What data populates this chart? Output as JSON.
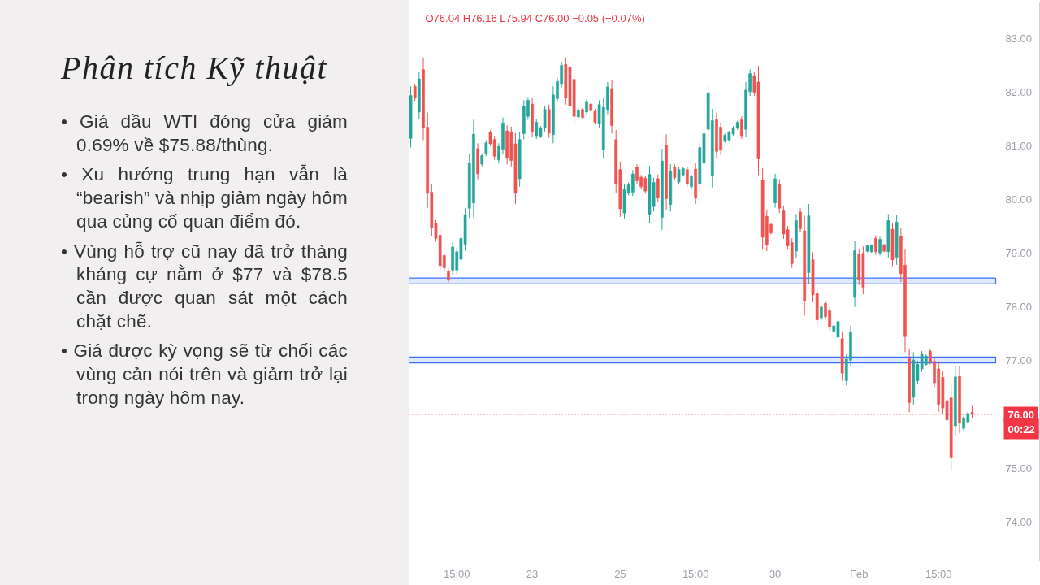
{
  "chart_data": {
    "type": "candlestick",
    "title": "Phân tích Kỹ thuật",
    "annotations": [
      "O76.04 H76.16 L75.94 C76.00 −0.05 (−0.07%)",
      "00:22",
      "• Giá dầu WTI đóng cửa giảm 0.69% về $75.88/thùng.",
      "• Xu hướng trung hạn vẫn là “bearish” và nhịp giảm ngày hôm qua củng cố quan điểm đó.",
      "• Vùng hỗ trợ cũ nay đã trở thàng kháng cự nằm ở $77 và $78.5 cần được quan sát một cách chặt chẽ.",
      "• Giá được kỳ vọng sẽ từ chối các vùng cản nói trên và giảm trở lại trong ngày hôm nay."
    ],
    "categories": [
      null,
      null,
      null,
      null,
      null,
      null,
      null,
      null,
      null,
      null,
      null,
      "15:00",
      null,
      null,
      null,
      null,
      null,
      null,
      null,
      null,
      null,
      null,
      null,
      null,
      null,
      null,
      null,
      null,
      null,
      "23",
      null,
      null,
      null,
      null,
      null,
      null,
      null,
      null,
      null,
      null,
      null,
      null,
      null,
      null,
      null,
      null,
      null,
      null,
      null,
      null,
      "25",
      null,
      null,
      null,
      null,
      null,
      null,
      null,
      null,
      null,
      null,
      null,
      null,
      null,
      null,
      null,
      null,
      null,
      "15:00",
      null,
      null,
      null,
      null,
      null,
      null,
      null,
      null,
      null,
      null,
      null,
      null,
      null,
      null,
      null,
      null,
      null,
      null,
      "30",
      null,
      null,
      null,
      null,
      null,
      null,
      null,
      null,
      null,
      null,
      null,
      null,
      null,
      null,
      null,
      null,
      null,
      null,
      null,
      "Feb",
      null,
      null,
      null,
      null,
      null,
      null,
      null,
      null,
      null,
      null,
      null,
      null,
      null,
      null,
      null,
      null,
      null,
      null,
      "15:00",
      null,
      null,
      null,
      null,
      null,
      null,
      null,
      null
    ],
    "ohlc": [
      [
        81.14,
        82.11,
        80.97,
        81.94
      ],
      [
        82.11,
        82.16,
        81.84,
        81.89
      ],
      [
        81.63,
        82.38,
        81.5,
        82.25
      ],
      [
        82.42,
        82.65,
        81.11,
        81.34
      ],
      [
        81.35,
        81.62,
        79.85,
        80.12
      ],
      [
        80.14,
        80.29,
        79.32,
        79.47
      ],
      [
        79.56,
        79.62,
        79.22,
        79.28
      ],
      [
        79.34,
        79.46,
        78.65,
        78.77
      ],
      [
        78.96,
        79.01,
        78.68,
        78.73
      ],
      [
        78.67,
        78.71,
        78.46,
        78.5
      ],
      [
        78.69,
        79.21,
        78.6,
        79.12
      ],
      [
        78.69,
        79.11,
        78.61,
        79.03
      ],
      [
        78.89,
        79.37,
        78.8,
        79.28
      ],
      [
        79.17,
        79.84,
        79.05,
        79.72
      ],
      [
        79.84,
        80.86,
        79.66,
        80.68
      ],
      [
        79.94,
        81.49,
        79.67,
        81.22
      ],
      [
        80.95,
        81.05,
        80.38,
        80.48
      ],
      [
        80.66,
        80.86,
        80.62,
        80.82
      ],
      [
        80.86,
        81.11,
        80.81,
        81.06
      ],
      [
        81.25,
        81.29,
        81.0,
        81.04
      ],
      [
        81.12,
        81.19,
        80.74,
        80.81
      ],
      [
        80.74,
        81.05,
        80.68,
        80.99
      ],
      [
        80.94,
        81.53,
        80.84,
        81.43
      ],
      [
        81.28,
        81.39,
        80.66,
        80.77
      ],
      [
        81.25,
        81.36,
        80.62,
        80.73
      ],
      [
        81.04,
        81.24,
        79.92,
        80.12
      ],
      [
        80.39,
        81.27,
        80.24,
        81.12
      ],
      [
        81.23,
        81.85,
        81.12,
        81.74
      ],
      [
        81.55,
        81.91,
        81.49,
        81.85
      ],
      [
        81.78,
        81.89,
        81.16,
        81.27
      ],
      [
        81.19,
        81.5,
        81.13,
        81.44
      ],
      [
        81.18,
        81.37,
        81.15,
        81.34
      ],
      [
        81.34,
        81.75,
        81.27,
        81.68
      ],
      [
        81.68,
        81.77,
        81.15,
        81.24
      ],
      [
        81.21,
        82.11,
        81.05,
        81.95
      ],
      [
        81.88,
        82.27,
        81.81,
        82.2
      ],
      [
        82.16,
        82.57,
        82.09,
        82.5
      ],
      [
        82.52,
        82.65,
        81.77,
        81.9
      ],
      [
        82.47,
        82.63,
        81.59,
        81.75
      ],
      [
        82.24,
        82.39,
        81.4,
        81.55
      ],
      [
        81.54,
        81.7,
        81.51,
        81.67
      ],
      [
        81.68,
        81.71,
        81.5,
        81.53
      ],
      [
        81.63,
        81.87,
        81.59,
        81.83
      ],
      [
        81.78,
        81.81,
        81.64,
        81.67
      ],
      [
        81.65,
        81.69,
        81.4,
        81.44
      ],
      [
        81.41,
        81.85,
        81.33,
        81.77
      ],
      [
        80.93,
        81.89,
        80.76,
        81.72
      ],
      [
        81.68,
        82.19,
        81.59,
        82.1
      ],
      [
        82.07,
        82.22,
        81.23,
        81.38
      ],
      [
        81.12,
        81.3,
        80.12,
        80.3
      ],
      [
        80.56,
        80.71,
        79.68,
        79.83
      ],
      [
        79.75,
        80.29,
        79.65,
        80.19
      ],
      [
        80.12,
        80.32,
        80.08,
        80.28
      ],
      [
        80.14,
        80.55,
        80.07,
        80.48
      ],
      [
        80.6,
        80.66,
        80.29,
        80.35
      ],
      [
        80.42,
        80.46,
        80.2,
        80.24
      ],
      [
        80.4,
        80.45,
        80.11,
        80.16
      ],
      [
        79.73,
        80.63,
        79.57,
        80.47
      ],
      [
        79.87,
        80.41,
        79.78,
        80.32
      ],
      [
        80.39,
        80.47,
        79.95,
        80.03
      ],
      [
        79.67,
        80.95,
        79.44,
        80.72
      ],
      [
        81.01,
        81.22,
        79.81,
        80.02
      ],
      [
        79.91,
        80.66,
        79.78,
        80.53
      ],
      [
        80.61,
        80.66,
        80.36,
        80.41
      ],
      [
        80.33,
        80.61,
        80.28,
        80.56
      ],
      [
        80.46,
        80.61,
        80.43,
        80.58
      ],
      [
        80.56,
        80.62,
        80.24,
        80.3
      ],
      [
        80.24,
        80.47,
        80.2,
        80.43
      ],
      [
        80.57,
        80.68,
        79.92,
        80.03
      ],
      [
        80.29,
        81.11,
        80.15,
        80.97
      ],
      [
        80.68,
        81.35,
        80.56,
        81.23
      ],
      [
        81.31,
        82.13,
        81.17,
        81.99
      ],
      [
        80.45,
        81.69,
        80.23,
        81.47
      ],
      [
        81.49,
        81.62,
        80.77,
        80.9
      ],
      [
        81.35,
        81.44,
        80.83,
        80.92
      ],
      [
        81.09,
        81.23,
        81.06,
        81.2
      ],
      [
        81.11,
        81.28,
        81.08,
        81.25
      ],
      [
        81.22,
        81.37,
        81.19,
        81.34
      ],
      [
        81.33,
        81.47,
        81.3,
        81.44
      ],
      [
        81.49,
        81.55,
        81.13,
        81.19
      ],
      [
        81.31,
        82.19,
        81.16,
        82.04
      ],
      [
        82.01,
        82.43,
        81.93,
        82.35
      ],
      [
        82.31,
        82.38,
        81.93,
        82.0
      ],
      [
        82.19,
        82.49,
        80.46,
        80.76
      ],
      [
        80.36,
        80.59,
        79.07,
        79.3
      ],
      [
        79.69,
        79.81,
        79.04,
        79.16
      ],
      [
        79.54,
        79.57,
        79.35,
        79.38
      ],
      [
        79.94,
        80.48,
        79.85,
        80.39
      ],
      [
        80.29,
        80.38,
        79.75,
        79.84
      ],
      [
        79.79,
        79.88,
        79.27,
        79.36
      ],
      [
        79.44,
        79.51,
        79.07,
        79.14
      ],
      [
        79.2,
        79.28,
        78.73,
        78.81
      ],
      [
        79.04,
        79.73,
        78.92,
        79.61
      ],
      [
        79.77,
        79.84,
        79.39,
        79.46
      ],
      [
        79.42,
        79.7,
        77.84,
        78.12
      ],
      [
        78.64,
        79.92,
        78.42,
        79.7
      ],
      [
        78.88,
        79.02,
        78.09,
        78.23
      ],
      [
        78.25,
        78.35,
        77.66,
        77.76
      ],
      [
        77.8,
        78.04,
        77.76,
        78.0
      ],
      [
        78.07,
        78.12,
        77.77,
        77.82
      ],
      [
        77.93,
        78.0,
        77.56,
        77.63
      ],
      [
        77.55,
        77.67,
        77.53,
        77.65
      ],
      [
        77.44,
        77.79,
        77.38,
        77.73
      ],
      [
        77.41,
        77.55,
        76.63,
        76.77
      ],
      [
        76.63,
        77.12,
        76.54,
        77.03
      ],
      [
        77.01,
        77.65,
        76.9,
        77.54
      ],
      [
        78.18,
        79.23,
        78.0,
        79.05
      ],
      [
        78.98,
        79.08,
        78.41,
        78.51
      ],
      [
        79.0,
        79.13,
        78.24,
        78.37
      ],
      [
        79.04,
        79.16,
        79.02,
        79.14
      ],
      [
        79.03,
        79.17,
        79.01,
        79.15
      ],
      [
        79.28,
        79.34,
        78.97,
        79.03
      ],
      [
        79.01,
        79.31,
        78.96,
        79.26
      ],
      [
        79.16,
        79.18,
        79.02,
        79.04
      ],
      [
        79.03,
        79.73,
        78.91,
        79.61
      ],
      [
        79.45,
        79.57,
        78.76,
        78.88
      ],
      [
        78.93,
        79.72,
        78.79,
        79.58
      ],
      [
        79.32,
        79.47,
        78.47,
        78.62
      ],
      [
        78.78,
        79.07,
        77.16,
        77.45
      ],
      [
        77.04,
        77.22,
        76.04,
        76.22
      ],
      [
        76.32,
        77.16,
        76.17,
        77.01
      ],
      [
        76.63,
        77.0,
        76.56,
        76.93
      ],
      [
        76.85,
        77.18,
        76.79,
        77.12
      ],
      [
        76.93,
        77.12,
        76.9,
        77.09
      ],
      [
        77.18,
        77.23,
        76.93,
        76.98
      ],
      [
        76.99,
        77.07,
        76.51,
        76.59
      ],
      [
        76.85,
        76.99,
        76.05,
        76.19
      ],
      [
        76.69,
        76.81,
        76.0,
        76.12
      ],
      [
        76.26,
        76.34,
        75.82,
        75.9
      ],
      [
        76.31,
        76.55,
        74.95,
        75.19
      ],
      [
        75.79,
        76.9,
        75.59,
        76.7
      ],
      [
        76.71,
        76.9,
        75.65,
        75.84
      ],
      [
        75.74,
        75.99,
        75.69,
        75.94
      ],
      [
        75.86,
        76.06,
        75.82,
        76.02
      ],
      [
        76.04,
        76.16,
        75.94,
        76.0
      ]
    ],
    "colors": [
      "#26a69a",
      "#ef5350",
      "#26a69a",
      "#ef5350",
      "#ef5350",
      "#ef5350",
      "#ef5350",
      "#ef5350",
      "#ef5350",
      "#ef5350",
      "#26a69a",
      "#26a69a",
      "#26a69a",
      "#26a69a",
      "#26a69a",
      "#26a69a",
      "#ef5350",
      "#26a69a",
      "#26a69a",
      "#ef5350",
      "#ef5350",
      "#26a69a",
      "#26a69a",
      "#ef5350",
      "#ef5350",
      "#ef5350",
      "#26a69a",
      "#26a69a",
      "#26a69a",
      "#ef5350",
      "#26a69a",
      "#26a69a",
      "#26a69a",
      "#ef5350",
      "#26a69a",
      "#26a69a",
      "#26a69a",
      "#ef5350",
      "#ef5350",
      "#ef5350",
      "#26a69a",
      "#ef5350",
      "#26a69a",
      "#ef5350",
      "#ef5350",
      "#26a69a",
      "#26a69a",
      "#26a69a",
      "#ef5350",
      "#ef5350",
      "#ef5350",
      "#26a69a",
      "#26a69a",
      "#26a69a",
      "#ef5350",
      "#ef5350",
      "#ef5350",
      "#26a69a",
      "#26a69a",
      "#ef5350",
      "#26a69a",
      "#ef5350",
      "#26a69a",
      "#ef5350",
      "#26a69a",
      "#26a69a",
      "#ef5350",
      "#26a69a",
      "#ef5350",
      "#26a69a",
      "#26a69a",
      "#26a69a",
      "#26a69a",
      "#ef5350",
      "#ef5350",
      "#26a69a",
      "#26a69a",
      "#26a69a",
      "#26a69a",
      "#ef5350",
      "#26a69a",
      "#26a69a",
      "#ef5350",
      "#ef5350",
      "#ef5350",
      "#ef5350",
      "#ef5350",
      "#26a69a",
      "#ef5350",
      "#ef5350",
      "#ef5350",
      "#ef5350",
      "#26a69a",
      "#ef5350",
      "#ef5350",
      "#26a69a",
      "#ef5350",
      "#ef5350",
      "#26a69a",
      "#ef5350",
      "#ef5350",
      "#26a69a",
      "#26a69a",
      "#ef5350",
      "#26a69a",
      "#26a69a",
      "#26a69a",
      "#ef5350",
      "#ef5350",
      "#26a69a",
      "#26a69a",
      "#ef5350",
      "#26a69a",
      "#ef5350",
      "#26a69a",
      "#ef5350",
      "#26a69a",
      "#ef5350",
      "#ef5350",
      "#ef5350",
      "#26a69a",
      "#26a69a",
      "#26a69a",
      "#26a69a",
      "#ef5350",
      "#ef5350",
      "#ef5350",
      "#ef5350",
      "#ef5350",
      "#ef5350",
      "#26a69a",
      "#ef5350",
      "#26a69a",
      "#26a69a",
      "#ef5350"
    ],
    "ylim": [
      73.27,
      83.68
    ],
    "yticks": [
      {
        "value": 74,
        "label": "74.00"
      },
      {
        "value": 75,
        "label": "75.00"
      },
      {
        "value": 77,
        "label": "77.00"
      },
      {
        "value": 78,
        "label": "78.00"
      },
      {
        "value": 79,
        "label": "79.00"
      },
      {
        "value": 80,
        "label": "80.00"
      },
      {
        "value": 81,
        "label": "81.00"
      },
      {
        "value": 82,
        "label": "82.00"
      },
      {
        "value": 83,
        "label": "83.00"
      }
    ],
    "ref_lines": [
      {
        "axis": "y",
        "value": 76,
        "label": "76.00",
        "color": "#f23645",
        "line_style": "dotted"
      }
    ],
    "bands": [
      {
        "axis": "y",
        "from": 78.43,
        "to": 78.54,
        "color": "#2962ff"
      },
      {
        "axis": "y",
        "from": 76.96,
        "to": 77.07,
        "color": "#2962ff"
      }
    ]
  }
}
